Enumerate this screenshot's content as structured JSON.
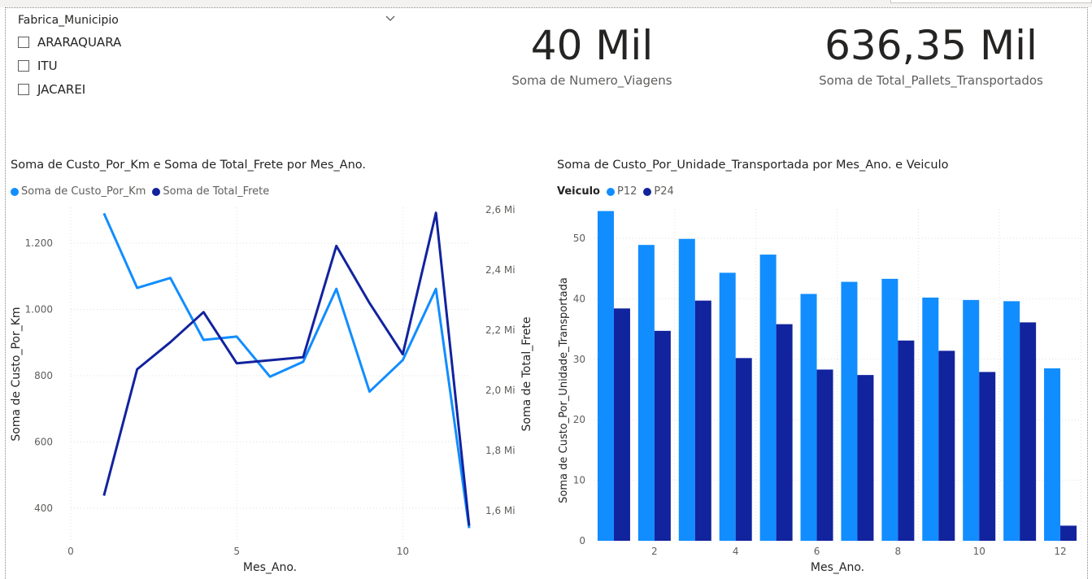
{
  "slicer": {
    "title": "Fabrica_Municipio",
    "items": [
      {
        "label": "ARARAQUARA"
      },
      {
        "label": "ITU"
      },
      {
        "label": "JACAREI"
      }
    ]
  },
  "cards": [
    {
      "value": "40 Mil",
      "label": "Soma de Numero_Viagens"
    },
    {
      "value": "636,35 Mil",
      "label": "Soma de Total_Pallets_Transportados"
    }
  ],
  "line_chart": {
    "title": "Soma de Custo_Por_Km e Soma de Total_Frete por Mes_Ano.",
    "legend": [
      "Soma de Custo_Por_Km",
      "Soma de Total_Frete"
    ],
    "colors": [
      "#118DFF",
      "#12239E"
    ],
    "x_label": "Mes_Ano.",
    "y_left_label": "Soma de Custo_Por_Km",
    "y_right_label": "Soma de Total_Frete",
    "x_ticks": [
      "0",
      "5",
      "10"
    ],
    "y_left_ticks": [
      "400",
      "600",
      "800",
      "1.000",
      "1.200"
    ],
    "y_right_ticks": [
      "1,6 Mi",
      "1,8 Mi",
      "2,0 Mi",
      "2,2 Mi",
      "2,4 Mi",
      "2,6 Mi"
    ]
  },
  "bar_chart": {
    "title": "Soma de Custo_Por_Unidade_Transportada por Mes_Ano. e Veiculo",
    "legend_title": "Veiculo",
    "legend": [
      "P12",
      "P24"
    ],
    "colors": [
      "#118DFF",
      "#12239E"
    ],
    "x_label": "Mes_Ano.",
    "y_label": "Soma de Custo_Por_Unidade_Transportada",
    "x_ticks": [
      "2",
      "4",
      "6",
      "8",
      "10",
      "12"
    ],
    "y_ticks": [
      "0",
      "10",
      "20",
      "30",
      "40",
      "50"
    ]
  },
  "chart_data": [
    {
      "type": "line",
      "title": "Soma de Custo_Por_Km e Soma de Total_Frete por Mes_Ano.",
      "xlabel": "Mes_Ano.",
      "ylabel": "Soma de Custo_Por_Km",
      "y2label": "Soma de Total_Frete",
      "x": [
        1,
        2,
        3,
        4,
        5,
        6,
        7,
        8,
        9,
        10,
        11,
        12
      ],
      "xlim": [
        0,
        12
      ],
      "ylim": [
        340,
        1300
      ],
      "y2lim": [
        1.55,
        2.6
      ],
      "grid": true,
      "legend": "top-left",
      "series": [
        {
          "name": "Soma de Custo_Por_Km",
          "axis": "left",
          "values": [
            1290,
            1065,
            1095,
            908,
            918,
            797,
            842,
            1062,
            752,
            847,
            1062,
            340
          ]
        },
        {
          "name": "Soma de Total_Frete",
          "axis": "right",
          "values": [
            1.65,
            2.07,
            2.16,
            2.26,
            2.09,
            2.1,
            2.11,
            2.48,
            2.29,
            2.12,
            2.59,
            1.55
          ]
        }
      ]
    },
    {
      "type": "bar",
      "title": "Soma de Custo_Por_Unidade_Transportada por Mes_Ano. e Veiculo",
      "xlabel": "Mes_Ano.",
      "ylabel": "Soma de Custo_Por_Unidade_Transportada",
      "categories": [
        1,
        2,
        3,
        4,
        5,
        6,
        7,
        8,
        9,
        10,
        11,
        12
      ],
      "ylim": [
        0,
        55
      ],
      "grid": true,
      "legend": "top-left",
      "series": [
        {
          "name": "P12",
          "values": [
            54.5,
            48.9,
            49.9,
            44.3,
            47.3,
            40.8,
            42.8,
            43.3,
            40.2,
            39.8,
            39.6,
            28.5
          ]
        },
        {
          "name": "P24",
          "values": [
            38.4,
            34.7,
            39.7,
            30.2,
            35.8,
            28.3,
            27.4,
            33.1,
            31.4,
            27.9,
            36.1,
            2.5
          ]
        }
      ]
    }
  ]
}
